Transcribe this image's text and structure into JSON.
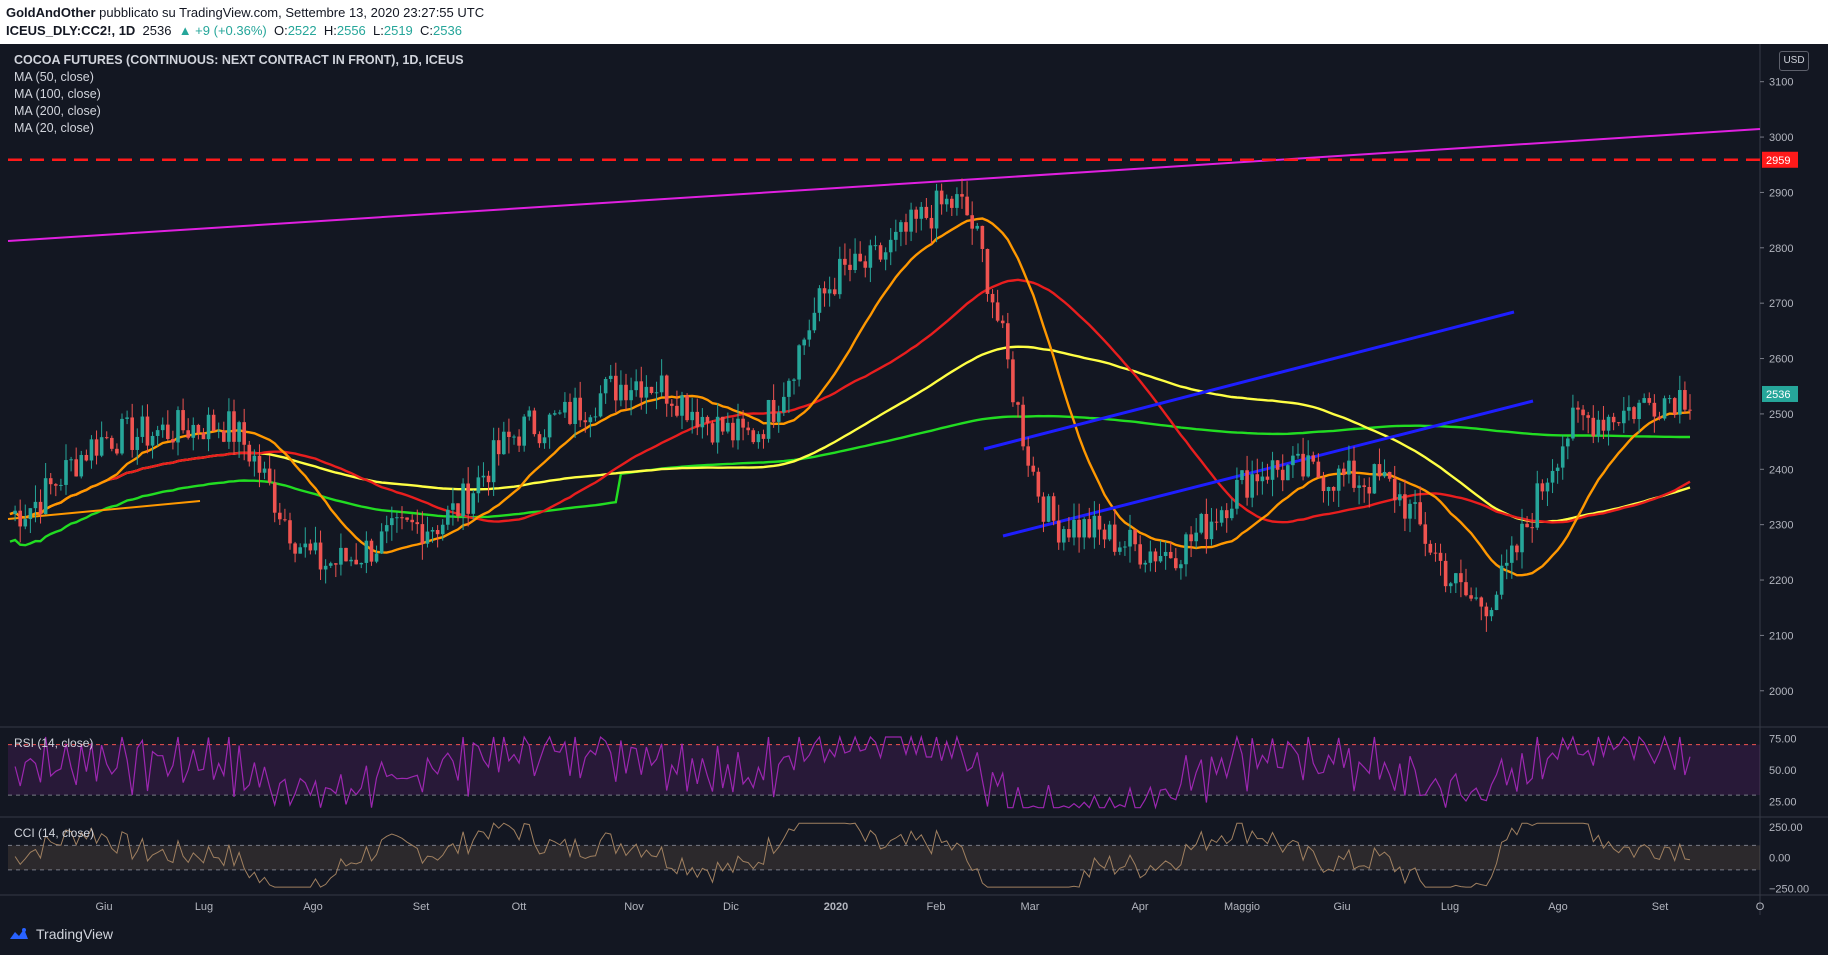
{
  "header": {
    "author": "GoldAndOther",
    "published": " pubblicato su TradingView.com, Settembre 13, 2020 23:27:55 UTC",
    "symbol": "ICEUS_DLY:CC2!, 1D",
    "last": "2536",
    "change": "▲ +9 (+0.36%)",
    "o_label": "O:",
    "o": "2522",
    "h_label": "H:",
    "h": "2556",
    "l_label": "L:",
    "l": "2519",
    "c_label": "C:",
    "c": "2536"
  },
  "legend": {
    "title": "COCOA FUTURES (CONTINUOUS: NEXT CONTRACT IN FRONT), 1D, ICEUS",
    "ma1": "MA (50, close)",
    "ma2": "MA (100, close)",
    "ma3": "MA (200, close)",
    "ma4": "MA (20, close)"
  },
  "currency": "USD",
  "rsi_label": "RSI (14, close)",
  "cci_label": "CCI (14, close)",
  "brand": "TradingView",
  "colors": {
    "background": "#131722",
    "up": "#26a69a",
    "down": "#ef5350",
    "ma50": "#e91e1e",
    "ma100": "#ffff44",
    "ma200": "#22dd22",
    "ma20": "#ff9800",
    "channel": "#1e1eff",
    "trendline": "#e020e0",
    "resistance": "#ff1a1a",
    "rsi": "#9c27b0",
    "cci": "#a08060"
  },
  "chart_data": {
    "type": "candlestick",
    "y_axis": {
      "ticks": [
        3100,
        3000,
        2900,
        2800,
        2700,
        2600,
        2500,
        2400,
        2300,
        2200,
        2100,
        2000
      ],
      "range": [
        1940,
        3150
      ]
    },
    "x_ticks": [
      "Giu",
      "Lug",
      "Ago",
      "Set",
      "Ott",
      "Nov",
      "Dic",
      "2020",
      "Feb",
      "Mar",
      "Apr",
      "Maggio",
      "Giu",
      "Lug",
      "Ago",
      "Set",
      "O"
    ],
    "price_markers": {
      "resistance": "2959",
      "last": "2536"
    },
    "series_points_monthly": [
      {
        "period": "Mag 2019",
        "value": 2320
      },
      {
        "period": "Giu 2019",
        "value": 2460
      },
      {
        "period": "Lug 2019",
        "value": 2480
      },
      {
        "period": "Ago 2019",
        "value": 2230
      },
      {
        "period": "Set 2019",
        "value": 2300
      },
      {
        "period": "Ott 2019",
        "value": 2480
      },
      {
        "period": "Nov 2019",
        "value": 2560
      },
      {
        "period": "Dic 2019",
        "value": 2460
      },
      {
        "period": "Gen 2020",
        "value": 2760
      },
      {
        "period": "Feb 2020",
        "value": 2880
      },
      {
        "period": "Mar 2020",
        "value": 2300
      },
      {
        "period": "Apr 2020",
        "value": 2250
      },
      {
        "period": "Mag 2020",
        "value": 2400
      },
      {
        "period": "Giu 2020",
        "value": 2380
      },
      {
        "period": "Lug 2020",
        "value": 2160
      },
      {
        "period": "Ago 2020",
        "value": 2490
      },
      {
        "period": "Set 2020",
        "value": 2536
      }
    ],
    "rsi": {
      "ticks": [
        "75.00",
        "50.00",
        "25.00"
      ],
      "overbought": 70,
      "oversold": 30
    },
    "cci": {
      "ticks": [
        "250.00",
        "0.00",
        "−250.00"
      ],
      "band": [
        100,
        -100
      ]
    }
  }
}
